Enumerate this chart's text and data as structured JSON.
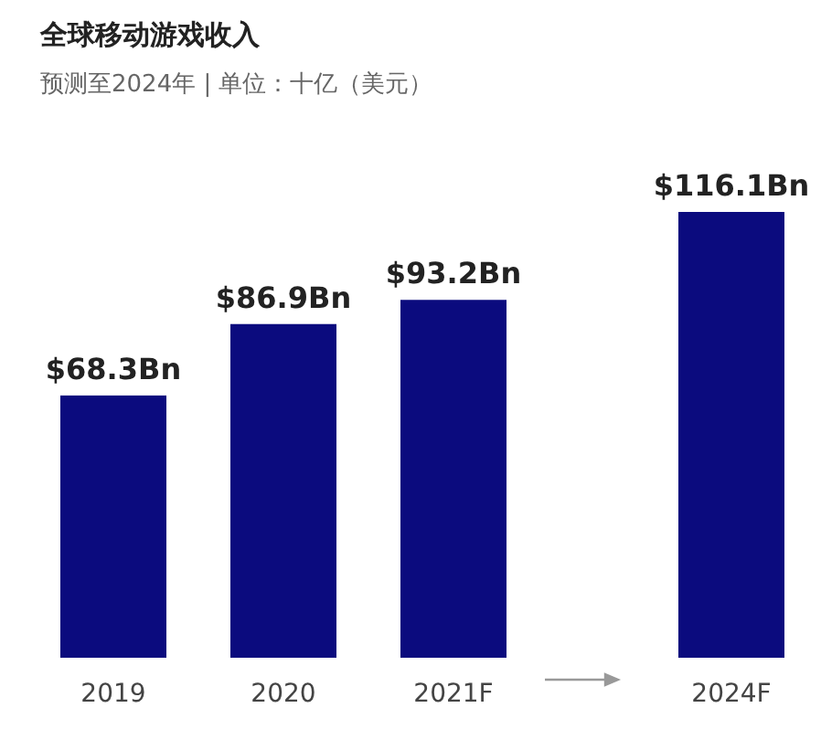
{
  "chart_data": {
    "type": "bar",
    "title": "全球移动游戏收入",
    "subtitle": "预测至2024年 | 单位：十亿（美元）",
    "categories": [
      "2019",
      "2020",
      "2021F",
      "2024F"
    ],
    "values": [
      68.3,
      86.9,
      93.2,
      116.1
    ],
    "value_labels": [
      "$68.3Bn",
      "$86.9Bn",
      "$93.2Bn",
      "$116.1Bn"
    ],
    "color": "#0b0b7e"
  }
}
